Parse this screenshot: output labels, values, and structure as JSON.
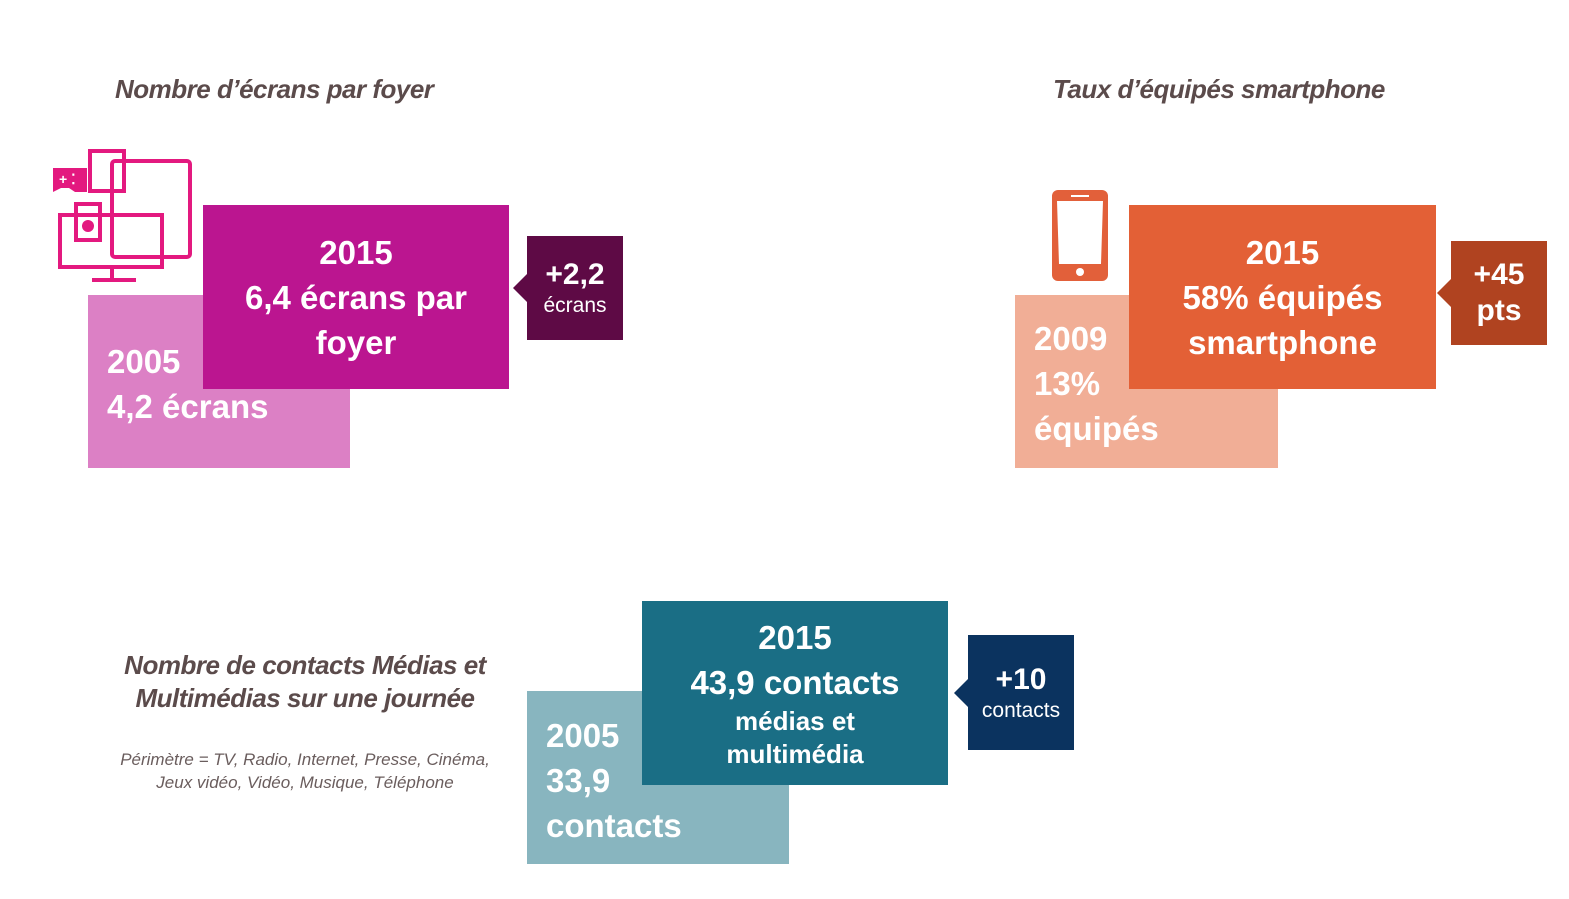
{
  "colors": {
    "screens_old": "#dc80c5",
    "screens_new": "#bb1590",
    "screens_badge": "#5e0a45",
    "screens_icon": "#e3197f",
    "smartphone_old": "#f1ae96",
    "smartphone_new": "#e36036",
    "smartphone_badge": "#b04320",
    "smartphone_icon": "#e2603a",
    "contacts_old": "#88b5bf",
    "contacts_new": "#1a6e85",
    "contacts_badge": "#0b335f",
    "title": "#5b4b4b"
  },
  "screens": {
    "title": "Nombre d’écrans par foyer",
    "icon": "multi-screen-icon",
    "old": {
      "year": "2005",
      "value": "4,2 écrans"
    },
    "new": {
      "year": "2015",
      "line1": "6,4 écrans par",
      "line2": "foyer"
    },
    "delta": {
      "value": "+2,2",
      "unit": "écrans"
    }
  },
  "smartphone": {
    "title": "Taux d’équipés smartphone",
    "icon": "smartphone-icon",
    "old": {
      "year": "2009",
      "value": "13%",
      "unit": "équipés"
    },
    "new": {
      "year": "2015",
      "line1": "58% équipés",
      "line2": "smartphone"
    },
    "delta": {
      "value": "+45",
      "unit": "pts"
    }
  },
  "contacts": {
    "title_line1": "Nombre de contacts Médias et",
    "title_line2": "Multimédias sur une journée",
    "note_line1": "Périmètre = TV, Radio, Internet, Presse, Cinéma,",
    "note_line2": "Jeux vidéo, Vidéo, Musique, Téléphone",
    "old": {
      "year": "2005",
      "value": "33,9",
      "unit": "contacts"
    },
    "new": {
      "year": "2015",
      "line1": "43,9 contacts",
      "line2": "médias et",
      "line3": "multimédia"
    },
    "delta": {
      "value": "+10",
      "unit": "contacts"
    }
  }
}
